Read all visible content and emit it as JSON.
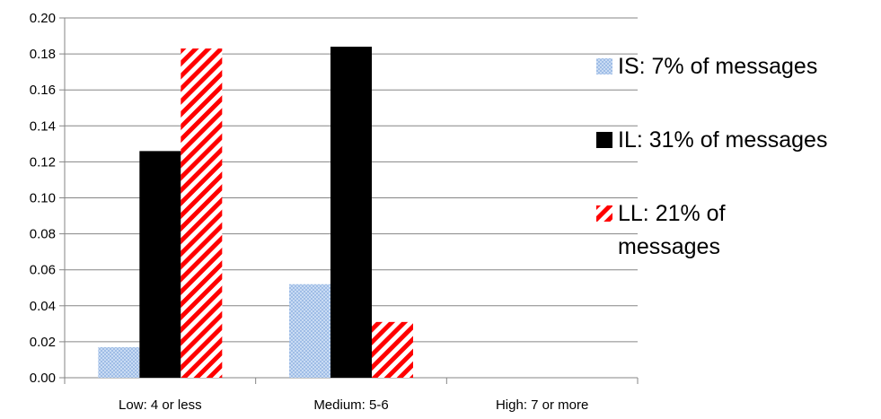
{
  "chart_data": {
    "type": "bar",
    "categories": [
      "Low: 4 or less",
      "Medium: 5-6",
      "High: 7 or more"
    ],
    "series": [
      {
        "name": "IS: 7% of messages",
        "values": [
          0.017,
          0.052,
          0.0
        ],
        "color": "#9fbde6",
        "pattern": "dotted-light-blue"
      },
      {
        "name": "IL: 31% of messages",
        "values": [
          0.126,
          0.184,
          0.0
        ],
        "color": "#000000",
        "pattern": "solid"
      },
      {
        "name": "LL: 21% of messages",
        "values": [
          0.183,
          0.031,
          0.0
        ],
        "color": "#ff0000",
        "pattern": "diagonal-stripes-red"
      }
    ],
    "y_ticks": [
      "0.00",
      "0.02",
      "0.04",
      "0.06",
      "0.08",
      "0.10",
      "0.12",
      "0.14",
      "0.16",
      "0.18",
      "0.20"
    ],
    "ylim": [
      0,
      0.2
    ],
    "grid": true,
    "legend_position": "right",
    "title": "",
    "xlabel": "",
    "ylabel": ""
  }
}
